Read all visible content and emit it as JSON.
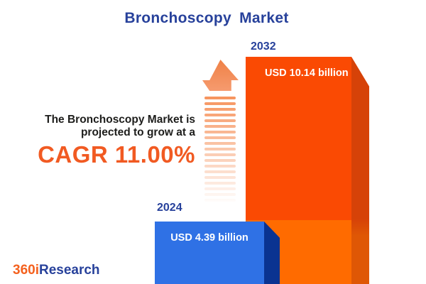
{
  "title": "Bronchoscopy Market",
  "annotation": {
    "line1": "The Bronchoscopy Market is",
    "line2": "projected to grow at a",
    "cagr_text": "CAGR 11.00%"
  },
  "chart_data": {
    "type": "bar",
    "title": "Bronchoscopy Market",
    "categories": [
      "2024",
      "2032"
    ],
    "series": [
      {
        "name": "Market size (USD billion)",
        "values": [
          4.39,
          10.14
        ]
      }
    ],
    "value_labels": [
      "USD 4.39 billion",
      "USD 10.14 billion"
    ],
    "unit": "USD billion",
    "cagr": "11.00%",
    "xlabel": "",
    "ylabel": "",
    "grid": false,
    "legend": "none",
    "colors": {
      "bar_2024_front": "#2F71E5",
      "bar_2024_side": "#0A3391",
      "bar_2032_front_top": "#FA4A03",
      "bar_2032_front_bottom": "#FF6B00",
      "bar_2032_side": "#D64208",
      "accent_orange": "#F15A22",
      "brand_blue": "#27419B"
    }
  },
  "icons": {
    "growth_arrow": "striped-up-arrow"
  },
  "logo": {
    "part1": "360i",
    "part2": "Research"
  }
}
